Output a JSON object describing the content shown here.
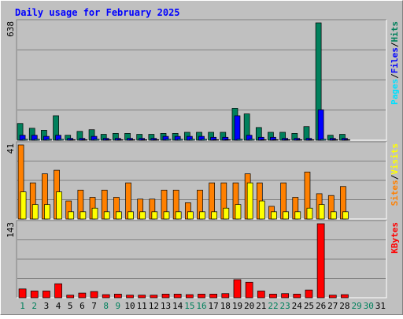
{
  "chart_data": {
    "type": "bar",
    "title": "Daily usage for February 2025",
    "categories": [
      "1",
      "2",
      "3",
      "4",
      "5",
      "6",
      "7",
      "8",
      "9",
      "10",
      "11",
      "12",
      "13",
      "14",
      "15",
      "16",
      "17",
      "18",
      "19",
      "20",
      "21",
      "22",
      "23",
      "24",
      "25",
      "26",
      "27",
      "28",
      "29",
      "30",
      "31"
    ],
    "weekend_days": [
      1,
      2,
      8,
      9,
      15,
      16,
      22,
      23,
      29,
      30
    ],
    "colors": {
      "hits": "#00805C",
      "files": "#0000FF",
      "pages": "#00E0FF",
      "visits": "#FFFF00",
      "sites": "#FF8000",
      "kbytes": "#FF0000",
      "title": "#0000FF",
      "weekday_label": "#000000",
      "weekend_label": "#00805C",
      "background": "#C0C0C0"
    },
    "panels": [
      {
        "id": "hits-files-pages",
        "y_max_label": "638",
        "y_max": 638,
        "legend": [
          {
            "text": "Pages",
            "color_key": "pages"
          },
          {
            "text": "/",
            "color_key": "sep"
          },
          {
            "text": "Files",
            "color_key": "files"
          },
          {
            "text": "/",
            "color_key": "sep"
          },
          {
            "text": "Hits",
            "color_key": "hits"
          }
        ],
        "series": [
          {
            "name": "Hits",
            "color_key": "hits",
            "values": [
              91,
              65,
              54,
              133,
              27,
              48,
              57,
              32,
              37,
              37,
              32,
              32,
              37,
              37,
              43,
              43,
              43,
              43,
              174,
              143,
              69,
              43,
              43,
              37,
              74,
              638,
              27,
              32,
              0,
              0,
              0
            ]
          },
          {
            "name": "Files",
            "color_key": "files",
            "values": [
              27,
              27,
              21,
              27,
              10,
              10,
              21,
              10,
              10,
              10,
              10,
              10,
              21,
              21,
              21,
              21,
              16,
              16,
              133,
              27,
              16,
              16,
              10,
              10,
              10,
              165,
              10,
              10,
              0,
              0,
              0
            ]
          },
          {
            "name": "Pages",
            "color_key": "pages",
            "values": [
              5,
              5,
              5,
              5,
              3,
              3,
              5,
              3,
              3,
              3,
              3,
              3,
              5,
              5,
              5,
              5,
              3,
              3,
              5,
              5,
              3,
              3,
              3,
              3,
              3,
              5,
              3,
              3,
              0,
              0,
              0
            ]
          }
        ]
      },
      {
        "id": "visits-sites",
        "y_max_label": "41",
        "y_max": 41,
        "legend": [
          {
            "text": "Sites",
            "color_key": "sites"
          },
          {
            "text": "/",
            "color_key": "sep"
          },
          {
            "text": "Visits",
            "color_key": "visits"
          }
        ],
        "series": [
          {
            "name": "Sites",
            "color_key": "sites",
            "values": [
              41,
              20,
              25,
              27,
              10,
              16,
              12,
              16,
              12,
              20,
              11,
              11,
              16,
              16,
              9,
              16,
              20,
              20,
              20,
              25,
              20,
              7,
              20,
              12,
              26,
              14,
              13,
              18,
              0,
              0,
              0
            ]
          },
          {
            "name": "Visits",
            "color_key": "visits",
            "values": [
              15,
              8,
              8,
              15,
              4,
              4,
              6,
              4,
              4,
              4,
              4,
              4,
              4,
              4,
              4,
              4,
              4,
              6,
              8,
              20,
              10,
              4,
              4,
              4,
              6,
              8,
              4,
              4,
              0,
              0,
              0
            ]
          }
        ]
      },
      {
        "id": "kbytes",
        "y_max_label": "143",
        "y_max": 143,
        "legend": [
          {
            "text": "KBytes",
            "color_key": "kbytes"
          }
        ],
        "series": [
          {
            "name": "KBytes",
            "color_key": "kbytes",
            "values": [
              17,
              13,
              13,
              27,
              5,
              9,
              12,
              6,
              7,
              5,
              5,
              5,
              7,
              7,
              6,
              7,
              7,
              8,
              35,
              30,
              13,
              7,
              8,
              7,
              15,
              143,
              5,
              6,
              0,
              0,
              0
            ]
          }
        ]
      }
    ]
  }
}
